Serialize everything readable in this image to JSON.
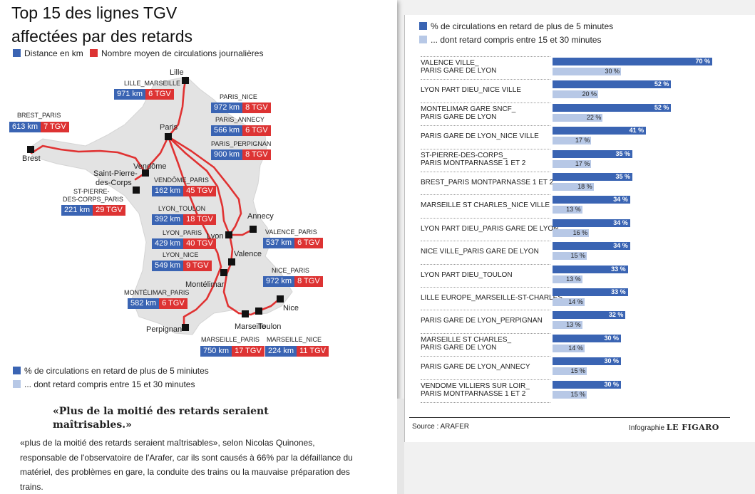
{
  "map_panel": {
    "title_line1": "Top 15 des lignes TGV",
    "title_line2": "affectées par des retards",
    "legend_distance": "Distance en km",
    "legend_trains": "Nombre moyen de circulations journalières",
    "legend_late5": "% de circulations en retard de plus de 5 miniutes",
    "legend_late15": "... dont retard compris entre 15 et 30 minutes",
    "colors": {
      "blue": "#3a64b3",
      "red": "#dd3333",
      "light": "#b7c8e6"
    },
    "cities": [
      {
        "id": "lille",
        "name": "Lille"
      },
      {
        "id": "paris",
        "name": "Paris"
      },
      {
        "id": "brest",
        "name": "Brest"
      },
      {
        "id": "vendome",
        "name": "Vendôme"
      },
      {
        "id": "spdc",
        "name": "Saint-Pierre-des-Corps"
      },
      {
        "id": "lyon",
        "name": "Lyon"
      },
      {
        "id": "annecy",
        "name": "Annecy"
      },
      {
        "id": "valence",
        "name": "Valence"
      },
      {
        "id": "montelimar",
        "name": "Montélimar"
      },
      {
        "id": "marseille",
        "name": "Marseille"
      },
      {
        "id": "toulon",
        "name": "Toulon"
      },
      {
        "id": "nice",
        "name": "Nice"
      },
      {
        "id": "perpignan",
        "name": "Perpignan"
      }
    ],
    "city_label_spdc_1": "Saint-Pierre-",
    "city_label_spdc_2": "des-Corps",
    "routes": [
      {
        "name": "LILLE_MARSEILLE",
        "km": "971 km",
        "tgv": "6 TGV"
      },
      {
        "name": "PARIS_NICE",
        "km": "972 km",
        "tgv": "8 TGV"
      },
      {
        "name": "PARIS_ANNECY",
        "km": "566 km",
        "tgv": "6 TGV"
      },
      {
        "name": "PARIS_PERPIGNAN",
        "km": "900 km",
        "tgv": "8 TGV"
      },
      {
        "name": "BREST_PARIS",
        "km": "613 km",
        "tgv": "7 TGV"
      },
      {
        "name": "VENDÔME_PARIS",
        "km": "162 km",
        "tgv": "45 TGV"
      },
      {
        "name": "ST-PIERRE-DES-CORPS_PARIS",
        "km": "221 km",
        "tgv": "29 TGV"
      },
      {
        "name": "LYON_TOULON",
        "km": "392 km",
        "tgv": "18 TGV"
      },
      {
        "name": "LYON_PARIS",
        "km": "429 km",
        "tgv": "40 TGV"
      },
      {
        "name": "VALENCE_PARIS",
        "km": "537 km",
        "tgv": "6 TGV"
      },
      {
        "name": "LYON_NICE",
        "km": "549 km",
        "tgv": "9 TGV"
      },
      {
        "name": "NICE_PARIS",
        "km": "972 km",
        "tgv": "8 TGV"
      },
      {
        "name": "MONTÉLIMAR_PARIS",
        "km": "582 km",
        "tgv": "6 TGV"
      },
      {
        "name": "MARSEILLE_PARIS",
        "km": "750 km",
        "tgv": "17 TGV"
      },
      {
        "name": "MARSEILLE_NICE",
        "km": "224 km",
        "tgv": "11 TGV"
      }
    ],
    "spdc_name_1": "ST-PIERRE-",
    "spdc_name_2": "DES-CORPS_PARIS"
  },
  "chart_data": {
    "type": "bar",
    "legend": [
      "% de circulations en retard de plus de 5 minutes",
      "... dont retard compris entre 15 et 30 minutes"
    ],
    "categories": [
      [
        "VALENCE VILLE_",
        "PARIS GARE DE LYON"
      ],
      [
        "LYON PART DIEU_NICE VILLE"
      ],
      [
        "MONTELIMAR GARE SNCF_",
        "PARIS GARE DE LYON"
      ],
      [
        "PARIS GARE DE LYON_NICE VILLE"
      ],
      [
        "ST-PIERRE-DES-CORPS_",
        "PARIS MONTPARNASSE 1 ET 2"
      ],
      [
        "BREST_PARIS MONTPARNASSE 1 ET 2"
      ],
      [
        "MARSEILLE ST CHARLES_NICE VILLE"
      ],
      [
        "LYON PART DIEU_PARIS GARE DE LYON"
      ],
      [
        "NICE VILLE_PARIS GARE DE LYON"
      ],
      [
        "LYON PART DIEU_TOULON"
      ],
      [
        "LILLE EUROPE_MARSEILLE-ST-CHARLES"
      ],
      [
        "PARIS GARE DE LYON_PERPIGNAN"
      ],
      [
        "MARSEILLE ST CHARLES_",
        "PARIS GARE DE LYON"
      ],
      [
        "PARIS GARE DE LYON_ANNECY"
      ],
      [
        "VENDOME VILLIERS SUR LOIR_",
        "PARIS MONTPARNASSE 1 ET 2"
      ]
    ],
    "series": [
      {
        "name": "% de circulations en retard de plus de 5 minutes",
        "values": [
          70,
          52,
          52,
          41,
          35,
          35,
          34,
          34,
          34,
          33,
          33,
          32,
          30,
          30,
          30
        ]
      },
      {
        "name": "... dont retard compris entre 15 et 30 minutes",
        "values": [
          30,
          20,
          22,
          17,
          17,
          18,
          13,
          16,
          15,
          13,
          14,
          13,
          14,
          15,
          15
        ]
      }
    ],
    "unit": "%",
    "xlim": [
      0,
      70
    ]
  },
  "source_label": "Source : ARAFER",
  "credit_label": "Infographie",
  "credit_brand": "LE FIGARO",
  "article": {
    "quote": "«Plus de la moitié des retards seraient maîtrisables.»",
    "body": "«plus de la moitié des retards seraient maîtrisables», selon Nicolas Quinones, responsable de l'observatoire de l'Arafer, car ils sont causés à 66% par la défaillance du matériel, des problèmes en gare, la conduite des trains ou la mauvaise préparation des trains."
  }
}
